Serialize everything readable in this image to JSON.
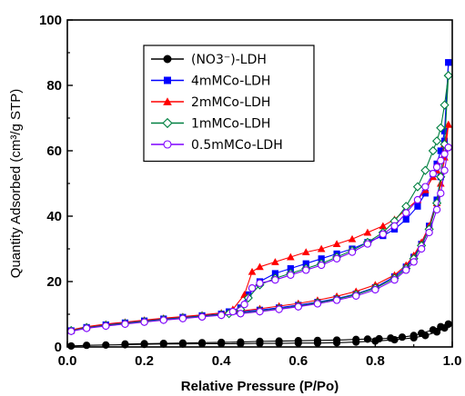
{
  "chart_data": {
    "type": "scatter",
    "xlabel": "Relative Pressure (P/Po)",
    "ylabel": "Quantity Adsorbed (cm³/g STP)",
    "xlim": [
      0.0,
      1.0
    ],
    "ylim": [
      0,
      100
    ],
    "x_ticks": [
      "0.0",
      "0.2",
      "0.4",
      "0.6",
      "0.8",
      "1.0"
    ],
    "y_ticks": [
      "0",
      "20",
      "40",
      "60",
      "80",
      "100"
    ],
    "x_tick_values": [
      0,
      0.2,
      0.4,
      0.6,
      0.8,
      1.0
    ],
    "y_tick_values": [
      0,
      20,
      40,
      60,
      80,
      100
    ],
    "grid": false,
    "legend_position": "top-left",
    "series": [
      {
        "name": "(NO3⁻)-LDH",
        "color": "#000000",
        "marker": "filled-circle",
        "adsorption": [
          [
            0.01,
            0.3
          ],
          [
            0.05,
            0.5
          ],
          [
            0.1,
            0.6
          ],
          [
            0.15,
            0.7
          ],
          [
            0.2,
            0.8
          ],
          [
            0.25,
            0.9
          ],
          [
            0.3,
            0.9
          ],
          [
            0.35,
            1.0
          ],
          [
            0.4,
            1.0
          ],
          [
            0.45,
            1.0
          ],
          [
            0.5,
            1.1
          ],
          [
            0.55,
            1.1
          ],
          [
            0.6,
            1.2
          ],
          [
            0.65,
            1.2
          ],
          [
            0.7,
            1.3
          ],
          [
            0.75,
            1.5
          ],
          [
            0.8,
            1.8
          ],
          [
            0.85,
            2.2
          ],
          [
            0.9,
            2.8
          ],
          [
            0.93,
            3.5
          ],
          [
            0.96,
            4.6
          ],
          [
            0.98,
            5.8
          ],
          [
            0.99,
            7.0
          ]
        ],
        "desorption": [
          [
            0.99,
            7.0
          ],
          [
            0.97,
            6.2
          ],
          [
            0.95,
            5.2
          ],
          [
            0.92,
            4.2
          ],
          [
            0.9,
            3.5
          ],
          [
            0.87,
            3.0
          ],
          [
            0.84,
            2.7
          ],
          [
            0.81,
            2.5
          ],
          [
            0.78,
            2.4
          ],
          [
            0.75,
            2.3
          ],
          [
            0.7,
            2.1
          ],
          [
            0.65,
            2.0
          ],
          [
            0.6,
            1.9
          ],
          [
            0.55,
            1.8
          ],
          [
            0.5,
            1.7
          ],
          [
            0.45,
            1.5
          ],
          [
            0.4,
            1.4
          ],
          [
            0.35,
            1.3
          ],
          [
            0.3,
            1.2
          ],
          [
            0.25,
            1.1
          ],
          [
            0.2,
            1.0
          ],
          [
            0.15,
            0.9
          ]
        ]
      },
      {
        "name": "4mMCo-LDH",
        "color": "#0000ff",
        "marker": "filled-square",
        "adsorption": [
          [
            0.01,
            5.0
          ],
          [
            0.05,
            6.0
          ],
          [
            0.1,
            6.8
          ],
          [
            0.15,
            7.4
          ],
          [
            0.2,
            8.0
          ],
          [
            0.25,
            8.6
          ],
          [
            0.3,
            9.1
          ],
          [
            0.35,
            9.6
          ],
          [
            0.4,
            10.1
          ],
          [
            0.45,
            10.7
          ],
          [
            0.5,
            11.3
          ],
          [
            0.55,
            12.0
          ],
          [
            0.6,
            12.8
          ],
          [
            0.65,
            13.7
          ],
          [
            0.7,
            14.8
          ],
          [
            0.75,
            16.2
          ],
          [
            0.8,
            18.2
          ],
          [
            0.85,
            21.5
          ],
          [
            0.88,
            24.5
          ],
          [
            0.9,
            27.5
          ],
          [
            0.92,
            31.5
          ],
          [
            0.94,
            37.0
          ],
          [
            0.96,
            45.0
          ],
          [
            0.97,
            52.0
          ],
          [
            0.98,
            63.0
          ],
          [
            0.99,
            87.0
          ]
        ],
        "desorption": [
          [
            0.99,
            87.0
          ],
          [
            0.98,
            66.0
          ],
          [
            0.97,
            60.0
          ],
          [
            0.96,
            56.0
          ],
          [
            0.95,
            53.0
          ],
          [
            0.93,
            47.0
          ],
          [
            0.91,
            43.0
          ],
          [
            0.88,
            39.0
          ],
          [
            0.85,
            36.0
          ],
          [
            0.82,
            34.0
          ],
          [
            0.78,
            32.0
          ],
          [
            0.74,
            30.0
          ],
          [
            0.7,
            28.5
          ],
          [
            0.66,
            27.0
          ],
          [
            0.62,
            25.5
          ],
          [
            0.58,
            24.0
          ],
          [
            0.54,
            22.5
          ],
          [
            0.5,
            20.0
          ],
          [
            0.47,
            16.0
          ],
          [
            0.45,
            12.0
          ],
          [
            0.42,
            10.8
          ]
        ]
      },
      {
        "name": "2mMCo-LDH",
        "color": "#ff0000",
        "marker": "filled-triangle",
        "adsorption": [
          [
            0.01,
            5.2
          ],
          [
            0.05,
            6.2
          ],
          [
            0.1,
            7.0
          ],
          [
            0.15,
            7.6
          ],
          [
            0.2,
            8.2
          ],
          [
            0.25,
            8.8
          ],
          [
            0.3,
            9.3
          ],
          [
            0.35,
            9.8
          ],
          [
            0.4,
            10.4
          ],
          [
            0.45,
            11.0
          ],
          [
            0.5,
            11.7
          ],
          [
            0.55,
            12.5
          ],
          [
            0.6,
            13.3
          ],
          [
            0.65,
            14.3
          ],
          [
            0.7,
            15.5
          ],
          [
            0.75,
            17.0
          ],
          [
            0.8,
            19.0
          ],
          [
            0.85,
            22.0
          ],
          [
            0.88,
            25.0
          ],
          [
            0.9,
            28.0
          ],
          [
            0.92,
            32.0
          ],
          [
            0.94,
            37.0
          ],
          [
            0.96,
            44.0
          ],
          [
            0.97,
            50.0
          ],
          [
            0.98,
            58.0
          ],
          [
            0.99,
            68.0
          ]
        ],
        "desorption": [
          [
            0.99,
            68.0
          ],
          [
            0.98,
            62.0
          ],
          [
            0.97,
            57.0
          ],
          [
            0.96,
            54.0
          ],
          [
            0.95,
            52.0
          ],
          [
            0.93,
            48.0
          ],
          [
            0.91,
            45.0
          ],
          [
            0.88,
            42.0
          ],
          [
            0.85,
            39.0
          ],
          [
            0.82,
            37.0
          ],
          [
            0.78,
            35.0
          ],
          [
            0.74,
            33.0
          ],
          [
            0.7,
            31.5
          ],
          [
            0.66,
            30.0
          ],
          [
            0.62,
            29.0
          ],
          [
            0.58,
            27.5
          ],
          [
            0.54,
            26.0
          ],
          [
            0.5,
            24.5
          ],
          [
            0.48,
            23.0
          ],
          [
            0.46,
            16.0
          ],
          [
            0.43,
            11.5
          ]
        ]
      },
      {
        "name": "1mMCo-LDH",
        "color": "#008040",
        "marker": "open-diamond",
        "adsorption": [
          [
            0.01,
            5.0
          ],
          [
            0.05,
            5.9
          ],
          [
            0.1,
            6.6
          ],
          [
            0.15,
            7.2
          ],
          [
            0.2,
            7.8
          ],
          [
            0.25,
            8.4
          ],
          [
            0.3,
            8.9
          ],
          [
            0.35,
            9.4
          ],
          [
            0.4,
            9.9
          ],
          [
            0.45,
            10.4
          ],
          [
            0.5,
            11.0
          ],
          [
            0.55,
            11.7
          ],
          [
            0.6,
            12.5
          ],
          [
            0.65,
            13.5
          ],
          [
            0.7,
            14.6
          ],
          [
            0.75,
            16.0
          ],
          [
            0.8,
            18.0
          ],
          [
            0.85,
            21.0
          ],
          [
            0.88,
            24.0
          ],
          [
            0.9,
            27.0
          ],
          [
            0.92,
            31.0
          ],
          [
            0.94,
            36.0
          ],
          [
            0.96,
            44.0
          ],
          [
            0.97,
            52.0
          ],
          [
            0.98,
            62.0
          ],
          [
            0.99,
            83.0
          ]
        ],
        "desorption": [
          [
            0.99,
            83.0
          ],
          [
            0.98,
            74.0
          ],
          [
            0.97,
            67.0
          ],
          [
            0.96,
            63.0
          ],
          [
            0.95,
            60.0
          ],
          [
            0.93,
            54.0
          ],
          [
            0.91,
            49.0
          ],
          [
            0.88,
            43.0
          ],
          [
            0.85,
            38.5
          ],
          [
            0.82,
            35.0
          ],
          [
            0.78,
            32.0
          ],
          [
            0.74,
            29.5
          ],
          [
            0.7,
            27.5
          ],
          [
            0.66,
            25.5
          ],
          [
            0.62,
            24.0
          ],
          [
            0.58,
            22.5
          ],
          [
            0.54,
            21.0
          ],
          [
            0.5,
            19.0
          ],
          [
            0.47,
            15.0
          ],
          [
            0.45,
            11.5
          ],
          [
            0.42,
            10.2
          ]
        ]
      },
      {
        "name": "0.5mMCo-LDH",
        "color": "#7f00ff",
        "marker": "open-circle",
        "adsorption": [
          [
            0.01,
            4.8
          ],
          [
            0.05,
            5.7
          ],
          [
            0.1,
            6.4
          ],
          [
            0.15,
            7.0
          ],
          [
            0.2,
            7.6
          ],
          [
            0.25,
            8.2
          ],
          [
            0.3,
            8.7
          ],
          [
            0.35,
            9.2
          ],
          [
            0.4,
            9.7
          ],
          [
            0.45,
            10.2
          ],
          [
            0.5,
            10.8
          ],
          [
            0.55,
            11.5
          ],
          [
            0.6,
            12.3
          ],
          [
            0.65,
            13.2
          ],
          [
            0.7,
            14.3
          ],
          [
            0.75,
            15.6
          ],
          [
            0.8,
            17.5
          ],
          [
            0.85,
            20.5
          ],
          [
            0.88,
            23.5
          ],
          [
            0.9,
            26.0
          ],
          [
            0.92,
            30.0
          ],
          [
            0.94,
            35.0
          ],
          [
            0.96,
            42.0
          ],
          [
            0.97,
            47.0
          ],
          [
            0.98,
            54.0
          ],
          [
            0.99,
            61.0
          ]
        ],
        "desorption": [
          [
            0.99,
            61.0
          ],
          [
            0.98,
            59.0
          ],
          [
            0.97,
            57.0
          ],
          [
            0.96,
            55.0
          ],
          [
            0.95,
            53.0
          ],
          [
            0.93,
            49.0
          ],
          [
            0.91,
            45.0
          ],
          [
            0.88,
            41.0
          ],
          [
            0.85,
            37.0
          ],
          [
            0.82,
            34.5
          ],
          [
            0.78,
            31.5
          ],
          [
            0.74,
            29.0
          ],
          [
            0.7,
            27.0
          ],
          [
            0.66,
            25.0
          ],
          [
            0.62,
            23.5
          ],
          [
            0.58,
            22.0
          ],
          [
            0.54,
            20.5
          ],
          [
            0.5,
            19.5
          ],
          [
            0.48,
            18.0
          ],
          [
            0.46,
            13.0
          ],
          [
            0.43,
            10.8
          ]
        ]
      }
    ]
  }
}
